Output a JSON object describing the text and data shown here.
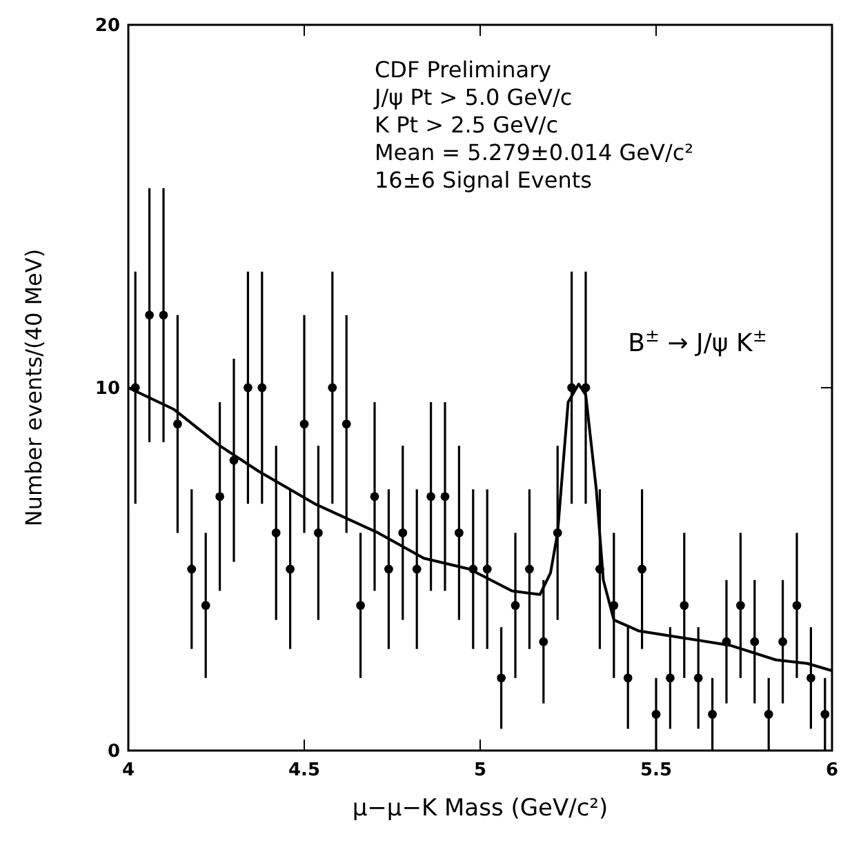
{
  "chart_data": {
    "type": "scatter",
    "xlabel": "μ−μ−K Mass (GeV/c²)",
    "ylabel": "Number events/(40 MeV)",
    "xlim": [
      4,
      6
    ],
    "xticks": [
      4,
      4.5,
      5,
      5.5,
      6
    ],
    "ylim": [
      0,
      20
    ],
    "yticks": [
      0,
      10,
      20
    ],
    "grid": false,
    "annotations": [
      "CDF Preliminary",
      "J/ψ Pt > 5.0 GeV/c",
      "K Pt > 2.5 GeV/c",
      "Mean = 5.279±0.014 GeV/c²",
      "16±6 Signal Events",
      "B$^{±}$ → J/ψ K$^{±}$"
    ],
    "series": [
      {
        "color": "#000000",
        "marker": "circle",
        "x": [
          4.02,
          4.06,
          4.1,
          4.14,
          4.18,
          4.22,
          4.26,
          4.3,
          4.34,
          4.38,
          4.42,
          4.46,
          4.5,
          4.54,
          4.58,
          4.62,
          4.66,
          4.7,
          4.74,
          4.78,
          4.82,
          4.86,
          4.9,
          4.94,
          4.98,
          5.02,
          5.06,
          5.1,
          5.14,
          5.18,
          5.22,
          5.26,
          5.3,
          5.34,
          5.38,
          5.42,
          5.46,
          5.5,
          5.54,
          5.58,
          5.62,
          5.66,
          5.7,
          5.74,
          5.78,
          5.82,
          5.86,
          5.9,
          5.94,
          5.98
        ],
        "values": [
          10,
          12,
          12,
          9,
          5,
          4,
          7,
          8,
          10,
          10,
          6,
          5,
          9,
          6,
          10,
          9,
          4,
          7,
          5,
          6,
          5,
          7,
          7,
          6,
          5,
          5,
          2,
          4,
          5,
          3,
          6,
          10,
          10,
          5,
          4,
          2,
          5,
          1,
          2,
          4,
          2,
          1,
          3,
          4,
          3,
          1,
          3,
          4,
          2,
          1
        ],
        "errors": [
          3.2,
          3.5,
          3.5,
          3,
          2.2,
          2,
          2.6,
          2.8,
          3.2,
          3.2,
          2.4,
          2.2,
          3,
          2.4,
          3.2,
          3,
          2,
          2.6,
          2.2,
          2.4,
          2.2,
          2.6,
          2.6,
          2.4,
          2.2,
          2.2,
          1.4,
          2,
          2.2,
          1.7,
          2.4,
          3.2,
          3.2,
          2.2,
          2,
          1.4,
          2.2,
          1,
          1.4,
          2,
          1.4,
          1,
          1.7,
          2,
          1.7,
          1,
          1.7,
          2,
          1.4,
          1
        ]
      },
      {
        "type": "line",
        "color": "#000000",
        "marker": "none",
        "line_style": "solid",
        "x": [
          4,
          4.13,
          4.26,
          4.37,
          4.53,
          4.62,
          4.71,
          4.84,
          4.97,
          5.09,
          5.17,
          5.2,
          5.22,
          5.25,
          5.28,
          5.3,
          5.33,
          5.35,
          5.38,
          5.45,
          5.58,
          5.71,
          5.84,
          5.93,
          6
        ],
        "values": [
          10,
          9.4,
          8.4,
          7.7,
          6.8,
          6.4,
          6,
          5.3,
          5,
          4.4,
          4.3,
          4.9,
          6,
          9.6,
          10.1,
          9.8,
          7.2,
          4.7,
          3.6,
          3.3,
          3.1,
          2.9,
          2.5,
          2.4,
          2.2
        ]
      }
    ]
  }
}
